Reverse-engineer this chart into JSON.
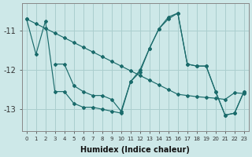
{
  "background_color": "#cde8e8",
  "grid_color": "#aacece",
  "line_color": "#1a6b6b",
  "xlabel": "Humidex (Indice chaleur)",
  "ylim": [
    -13.55,
    -10.3
  ],
  "yticks": [
    -13,
    -12,
    -11
  ],
  "xlim": [
    -0.5,
    23.5
  ],
  "x_line1": [
    0,
    1,
    2,
    3,
    4,
    5,
    6,
    7,
    8,
    9,
    10,
    11,
    12,
    13,
    14,
    15,
    16,
    17,
    18,
    19,
    20,
    21,
    22,
    23
  ],
  "y_line1": [
    -10.7,
    -11.6,
    -10.75,
    -12.55,
    -12.55,
    -12.85,
    -12.95,
    -12.95,
    -13.0,
    -13.05,
    -13.1,
    -12.3,
    -12.05,
    -11.45,
    -10.95,
    -10.7,
    -10.55,
    -11.85,
    -11.9,
    -11.9,
    -12.55,
    -13.15,
    -13.1,
    -12.55
  ],
  "x_line2": [
    0,
    1,
    2,
    3,
    4,
    5,
    6,
    7,
    8,
    9,
    10,
    11,
    12,
    13,
    14,
    15,
    16,
    17,
    18,
    19,
    20,
    21,
    22,
    23
  ],
  "y_line2": [
    -10.7,
    -10.82,
    -10.94,
    -11.06,
    -11.18,
    -11.3,
    -11.42,
    -11.54,
    -11.66,
    -11.78,
    -11.9,
    -12.02,
    -12.14,
    -12.26,
    -12.38,
    -12.5,
    -12.62,
    -12.65,
    -12.68,
    -12.7,
    -12.72,
    -12.75,
    -12.58,
    -12.6
  ],
  "x_line3": [
    3,
    4,
    5,
    6,
    7,
    8,
    9,
    10,
    11,
    12,
    13,
    14,
    15,
    16,
    17,
    18,
    19,
    20,
    21,
    22,
    23
  ],
  "y_line3": [
    -11.85,
    -11.85,
    -12.4,
    -12.55,
    -12.65,
    -12.65,
    -12.75,
    -13.05,
    -12.3,
    -12.0,
    -11.45,
    -10.95,
    -10.65,
    -10.55,
    -11.85,
    -11.9,
    -11.9,
    -12.55,
    -13.15,
    -13.1,
    -12.55
  ]
}
